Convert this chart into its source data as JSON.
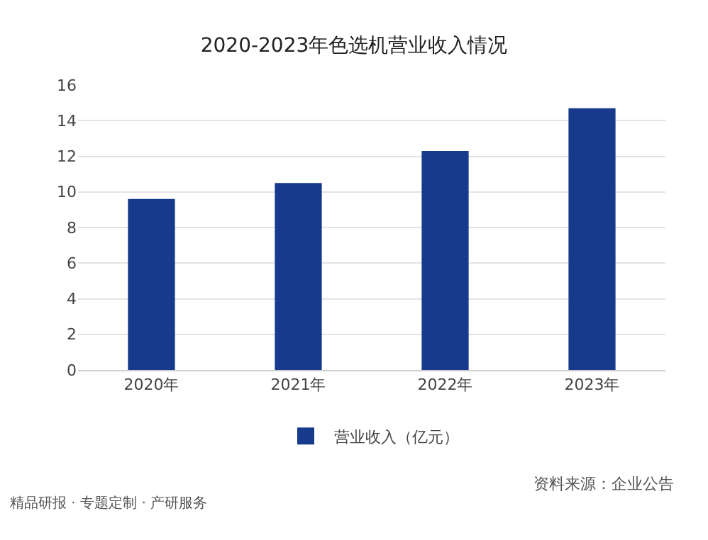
{
  "chart_data": {
    "type": "bar",
    "title": "2020-2023年色选机营业收入情况",
    "categories": [
      "2020年",
      "2021年",
      "2022年",
      "2023年"
    ],
    "series": [
      {
        "name": "营业收入（亿元）",
        "color": "#173a8c",
        "values": [
          9.6,
          10.5,
          12.3,
          14.7
        ]
      }
    ],
    "ylim": [
      0,
      16
    ],
    "yticks": [
      0,
      2,
      4,
      6,
      8,
      10,
      12,
      14,
      16
    ],
    "grid": "y",
    "legend": "bottom",
    "annotations": [
      "资料来源：企业公告",
      "精品研报 · 专题定制 · 产研服务"
    ]
  }
}
